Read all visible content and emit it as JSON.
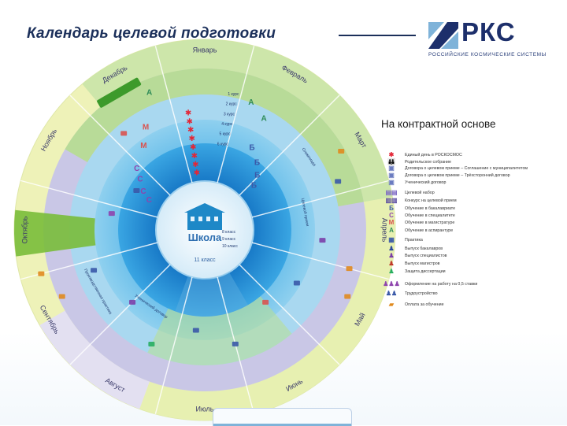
{
  "header": {
    "title": "Календарь целевой подготовки",
    "subtitle": "На контрактной основе"
  },
  "logo": {
    "text": "РКС",
    "subtext": "РОССИЙСКИЕ КОСМИЧЕСКИЕ СИСТЕМЫ",
    "color": "#1d2f6b",
    "accent": "#7fb3d9"
  },
  "diagram": {
    "months": [
      "Декабрь",
      "Январь",
      "Февраль",
      "Март",
      "Апрель",
      "Май",
      "Июнь",
      "Июль",
      "Август",
      "Сентябрь",
      "Октябрь",
      "Ноябрь"
    ],
    "center_label": "Школа",
    "center_grade_label": "11 класс",
    "grades": [
      "8 класс",
      "9 класс",
      "10 класс"
    ],
    "year_labels": [
      "1 курс",
      "2 курс",
      "3 курс",
      "4 курс",
      "5 курс",
      "6 курс"
    ],
    "course_letters": [
      "А",
      "А",
      "А",
      "М",
      "М",
      "Б",
      "Б",
      "Б",
      "Б",
      "С",
      "С",
      "С",
      "С"
    ],
    "ring_labels": [
      "Олимпиада",
      "Целевой прием",
      "Ученический договор",
      "Производственная практика"
    ],
    "colors": {
      "outer_green": "#c7e4a7",
      "outer_yellow": "#eef2b8",
      "lavender": "#c9c7e6",
      "light_blue": "#a9d8f0",
      "mid_blue": "#64b9e6",
      "deep_blue": "#1f8fd2",
      "center": "#e6f3fb",
      "green_band": "#79bd3a",
      "red_star": "#e32636",
      "letter_M": "#d9534f",
      "letter_B": "#3a59a8",
      "letter_C": "#8e44ad",
      "letter_A": "#2e8b57"
    }
  },
  "legend": {
    "items": [
      {
        "icon": "✱",
        "color": "#e32636",
        "label": "Единый день в РОСКОСМОС"
      },
      {
        "icon": "👪",
        "color": "#4a5aa8",
        "label": "Родительское собрание"
      },
      {
        "icon": "▣",
        "color": "#6b7cc0",
        "label": "Договора о целевом приеме – Соглашение с муниципалитетом"
      },
      {
        "icon": "▣",
        "color": "#6b7cc0",
        "label": "Договора о целевом приеме – Трёхсторонний договор"
      },
      {
        "icon": "▣",
        "color": "#6b7cc0",
        "label": "Ученический договор"
      },
      {
        "icon": "▤▤",
        "color": "#7d68c4",
        "label": "Целевой набор"
      },
      {
        "icon": "▥▥",
        "color": "#5a4ba0",
        "label": "Конкурс на целевой прием"
      },
      {
        "icon": "Б",
        "color": "#3a59a8",
        "label": "Обучение в бакалавриате"
      },
      {
        "icon": "С",
        "color": "#8e44ad",
        "label": "Обучение в специалитете"
      },
      {
        "icon": "М",
        "color": "#d9534f",
        "label": "Обучение в магистратуре"
      },
      {
        "icon": "А",
        "color": "#2e8b57",
        "label": "Обучение в аспирантуре"
      },
      {
        "icon": "▦",
        "color": "#3a59a8",
        "label": "Практика"
      },
      {
        "icon": "♟",
        "color": "#2d4b99",
        "label": "Выпуск бакалавров"
      },
      {
        "icon": "♟",
        "color": "#7a3fa8",
        "label": "Выпуск специалистов"
      },
      {
        "icon": "♟",
        "color": "#c0392b",
        "label": "Выпуск магистров"
      },
      {
        "icon": "♟",
        "color": "#27ae60",
        "label": "Защита диссертации"
      },
      {
        "icon": "♟♟♟",
        "color": "#8e44ad",
        "label": "Оформление на работу на 0,5 ставки"
      },
      {
        "icon": "♟♟",
        "color": "#3a59a8",
        "label": "Трудоустройство"
      },
      {
        "icon": "▰",
        "color": "#e08a1e",
        "label": "Оплата за обучение"
      }
    ]
  }
}
